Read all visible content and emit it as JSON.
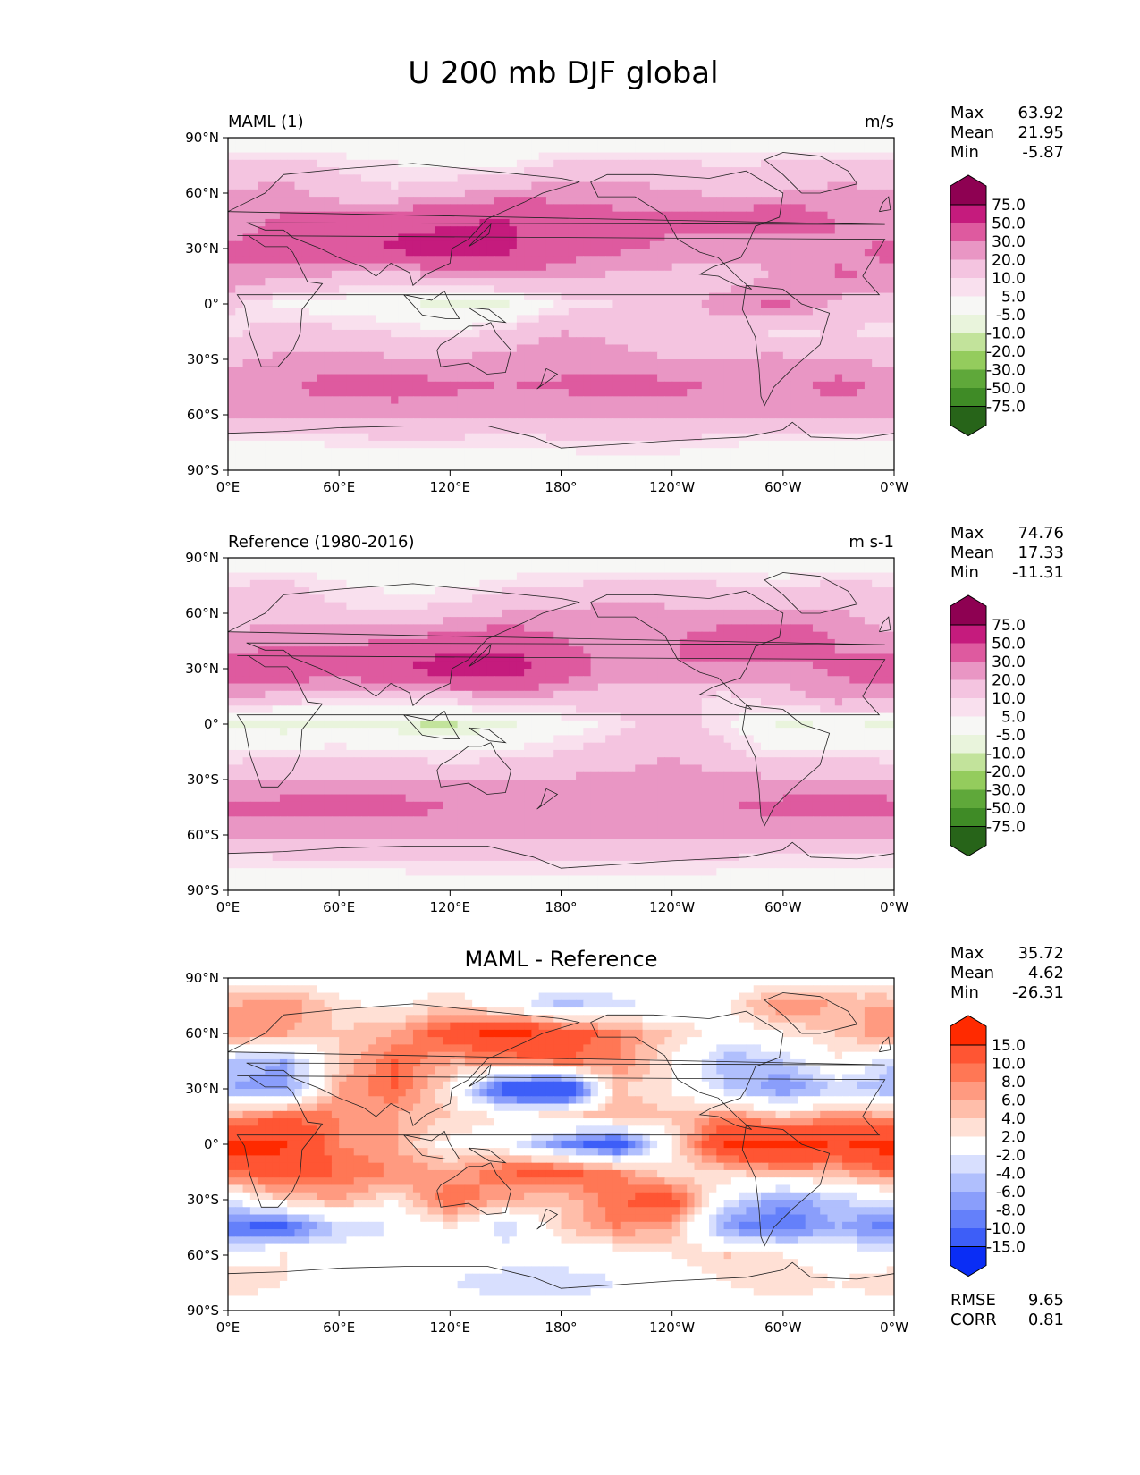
{
  "figure": {
    "title": "U 200 mb DJF global"
  },
  "chart_data": [
    {
      "type": "heatmap",
      "title": "",
      "left_label": "MAML (1)",
      "units": "m/s",
      "x_ticks": [
        "0°E",
        "60°E",
        "120°E",
        "180°",
        "120°W",
        "60°W",
        "0°W"
      ],
      "y_ticks": [
        "90°N",
        "60°N",
        "30°N",
        "0°",
        "30°S",
        "60°S",
        "90°S"
      ],
      "xlim": [
        0,
        360
      ],
      "ylim": [
        -90,
        90
      ],
      "stats": [
        {
          "label": "Max",
          "value": "63.92"
        },
        {
          "label": "Mean",
          "value": "21.95"
        },
        {
          "label": "Min",
          "value": "-5.87"
        }
      ],
      "colorbar": {
        "levels": [
          "75.0",
          "50.0",
          "30.0",
          "20.0",
          "10.0",
          "5.0",
          "-5.0",
          "-10.0",
          "-20.0",
          "-30.0",
          "-50.0",
          "-75.0"
        ],
        "colors": [
          "#8e0152",
          "#c51b7d",
          "#de5a9f",
          "#e996c4",
          "#f4c4e0",
          "#f9e0ee",
          "#f7f7f5",
          "#e9f4dc",
          "#c2e39b",
          "#94cc5d",
          "#5fa83a",
          "#3f8b26",
          "#276419"
        ],
        "extend": "both"
      },
      "field": {
        "grid_lon": [
          0,
          30,
          60,
          90,
          120,
          150,
          180,
          210,
          240,
          270,
          300,
          330,
          360
        ],
        "grid_lat": [
          90,
          75,
          60,
          45,
          30,
          15,
          0,
          -15,
          -30,
          -45,
          -60,
          -75,
          -90
        ],
        "values": [
          [
            -2,
            -2,
            -2,
            -2,
            -2,
            -2,
            -2,
            -2,
            -2,
            -2,
            -2,
            -2,
            -2
          ],
          [
            12,
            14,
            9,
            6,
            2,
            4,
            12,
            14,
            13,
            9,
            12,
            14,
            12
          ],
          [
            21,
            24,
            14,
            11,
            18,
            24,
            25,
            23,
            22,
            18,
            20,
            23,
            21
          ],
          [
            24,
            32,
            36,
            42,
            48,
            51,
            42,
            35,
            32,
            38,
            42,
            30,
            24
          ],
          [
            32,
            36,
            40,
            55,
            57,
            54,
            38,
            32,
            28,
            24,
            21,
            28,
            32
          ],
          [
            28,
            22,
            18,
            15,
            20,
            26,
            22,
            18,
            16,
            14,
            22,
            31,
            28
          ],
          [
            12,
            3,
            1,
            -2,
            -8,
            -6,
            6,
            10,
            14,
            26,
            32,
            16,
            12
          ],
          [
            8,
            14,
            12,
            9,
            6,
            12,
            20,
            18,
            16,
            12,
            8,
            10,
            8
          ],
          [
            18,
            22,
            24,
            21,
            20,
            24,
            26,
            22,
            20,
            21,
            22,
            19,
            18
          ],
          [
            26,
            28,
            36,
            38,
            33,
            30,
            32,
            36,
            34,
            28,
            26,
            36,
            26
          ],
          [
            20,
            22,
            22,
            21,
            20,
            20,
            20,
            20,
            20,
            20,
            20,
            21,
            20
          ],
          [
            2,
            4,
            6,
            8,
            8,
            6,
            8,
            10,
            9,
            6,
            4,
            2,
            2
          ],
          [
            -2,
            -2,
            -2,
            -2,
            -2,
            -2,
            -2,
            -2,
            -2,
            -2,
            -2,
            -2,
            -2
          ]
        ]
      }
    },
    {
      "type": "heatmap",
      "title": "",
      "left_label": "Reference (1980-2016)",
      "units": "m s-1",
      "x_ticks": [
        "0°E",
        "60°E",
        "120°E",
        "180°",
        "120°W",
        "60°W",
        "0°W"
      ],
      "y_ticks": [
        "90°N",
        "60°N",
        "30°N",
        "0°",
        "30°S",
        "60°S",
        "90°S"
      ],
      "xlim": [
        0,
        360
      ],
      "ylim": [
        -90,
        90
      ],
      "stats": [
        {
          "label": "Max",
          "value": "74.76"
        },
        {
          "label": "Mean",
          "value": "17.33"
        },
        {
          "label": "Min",
          "value": "-11.31"
        }
      ],
      "colorbar": {
        "levels": [
          "75.0",
          "50.0",
          "30.0",
          "20.0",
          "10.0",
          "5.0",
          "-5.0",
          "-10.0",
          "-20.0",
          "-30.0",
          "-50.0",
          "-75.0"
        ],
        "colors": [
          "#8e0152",
          "#c51b7d",
          "#de5a9f",
          "#e996c4",
          "#f4c4e0",
          "#f9e0ee",
          "#f7f7f5",
          "#e9f4dc",
          "#c2e39b",
          "#94cc5d",
          "#5fa83a",
          "#3f8b26",
          "#276419"
        ],
        "extend": "both"
      },
      "field": {
        "grid_lon": [
          0,
          30,
          60,
          90,
          120,
          150,
          180,
          210,
          240,
          270,
          300,
          330,
          360
        ],
        "grid_lat": [
          90,
          75,
          60,
          45,
          30,
          15,
          0,
          -15,
          -30,
          -45,
          -60,
          -75,
          -90
        ],
        "values": [
          [
            -2,
            -2,
            -2,
            -2,
            -2,
            -2,
            -2,
            -2,
            -2,
            -2,
            -2,
            -2,
            -2
          ],
          [
            10,
            12,
            6,
            3,
            3,
            8,
            10,
            12,
            14,
            10,
            8,
            12,
            10
          ],
          [
            14,
            16,
            12,
            10,
            14,
            20,
            22,
            24,
            22,
            20,
            24,
            22,
            14
          ],
          [
            22,
            28,
            28,
            30,
            38,
            42,
            30,
            24,
            28,
            42,
            44,
            28,
            22
          ],
          [
            36,
            42,
            38,
            48,
            62,
            64,
            40,
            24,
            30,
            28,
            26,
            32,
            36
          ],
          [
            24,
            16,
            12,
            10,
            14,
            22,
            18,
            14,
            12,
            8,
            16,
            26,
            24
          ],
          [
            -6,
            -10,
            -6,
            -9,
            -11,
            -6,
            0,
            8,
            14,
            6,
            -6,
            -4,
            -6
          ],
          [
            4,
            8,
            8,
            6,
            4,
            6,
            10,
            14,
            20,
            12,
            4,
            6,
            4
          ],
          [
            20,
            18,
            20,
            21,
            20,
            20,
            21,
            22,
            23,
            22,
            22,
            22,
            20
          ],
          [
            34,
            36,
            38,
            36,
            30,
            28,
            28,
            28,
            28,
            30,
            34,
            38,
            34
          ],
          [
            20,
            20,
            20,
            20,
            20,
            20,
            20,
            20,
            20,
            20,
            20,
            20,
            20
          ],
          [
            6,
            8,
            8,
            8,
            10,
            10,
            10,
            10,
            10,
            8,
            6,
            6,
            6
          ],
          [
            -2,
            -2,
            -2,
            -2,
            -2,
            -2,
            -2,
            -2,
            -2,
            -2,
            -2,
            -2,
            -2
          ]
        ]
      }
    },
    {
      "type": "heatmap",
      "title": "MAML - Reference",
      "left_label": "",
      "units": "",
      "x_ticks": [
        "0°E",
        "60°E",
        "120°E",
        "180°",
        "120°W",
        "60°W",
        "0°W"
      ],
      "y_ticks": [
        "90°N",
        "60°N",
        "30°N",
        "0°",
        "30°S",
        "60°S",
        "90°S"
      ],
      "xlim": [
        0,
        360
      ],
      "ylim": [
        -90,
        90
      ],
      "stats": [
        {
          "label": "Max",
          "value": "35.72"
        },
        {
          "label": "Mean",
          "value": "4.62"
        },
        {
          "label": "Min",
          "value": "-26.31"
        }
      ],
      "extra_stats": [
        {
          "label": "RMSE",
          "value": "9.65"
        },
        {
          "label": "CORR",
          "value": "0.81"
        }
      ],
      "colorbar": {
        "levels": [
          "15.0",
          "10.0",
          "8.0",
          "6.0",
          "4.0",
          "2.0",
          "-2.0",
          "-4.0",
          "-6.0",
          "-8.0",
          "-10.0",
          "-15.0"
        ],
        "colors": [
          "#ff2a00",
          "#ff5533",
          "#ff7755",
          "#ff9a80",
          "#ffbeaa",
          "#ffe0d5",
          "#ffffff",
          "#d8dffe",
          "#b0bffd",
          "#8a9efb",
          "#6480fa",
          "#3d5ef8",
          "#0a2df5"
        ],
        "extend": "both"
      },
      "field": {
        "grid_lon": [
          0,
          30,
          60,
          90,
          120,
          150,
          180,
          210,
          240,
          270,
          300,
          330,
          360
        ],
        "grid_lat": [
          90,
          75,
          60,
          45,
          30,
          15,
          0,
          -15,
          -30,
          -45,
          -60,
          -75,
          -90
        ],
        "values": [
          [
            0,
            0,
            0,
            0,
            0,
            0,
            0,
            0,
            0,
            0,
            0,
            0,
            0
          ],
          [
            6,
            8,
            3,
            1,
            4,
            0,
            -5,
            -3,
            0,
            2,
            8,
            6,
            6
          ],
          [
            8,
            6,
            4,
            6,
            12,
            17,
            13,
            8,
            4,
            0,
            2,
            4,
            8
          ],
          [
            -4,
            -6,
            4,
            10,
            6,
            8,
            10,
            8,
            2,
            -6,
            -4,
            2,
            -4
          ],
          [
            -6,
            -8,
            6,
            10,
            2,
            -14,
            -18,
            4,
            2,
            -4,
            -8,
            -4,
            -6
          ],
          [
            6,
            10,
            8,
            6,
            4,
            2,
            4,
            6,
            4,
            8,
            4,
            8,
            6
          ],
          [
            18,
            16,
            8,
            6,
            1,
            0,
            -8,
            -14,
            2,
            16,
            18,
            14,
            18
          ],
          [
            10,
            12,
            10,
            8,
            6,
            10,
            12,
            8,
            2,
            4,
            6,
            6,
            10
          ],
          [
            -2,
            4,
            6,
            2,
            10,
            6,
            4,
            10,
            12,
            -2,
            -8,
            -4,
            -2
          ],
          [
            -10,
            -12,
            -4,
            -2,
            2,
            -4,
            4,
            8,
            6,
            -8,
            -10,
            -6,
            -10
          ],
          [
            0,
            2,
            0,
            0,
            0,
            0,
            0,
            0,
            2,
            4,
            2,
            0,
            0
          ],
          [
            4,
            2,
            0,
            0,
            -2,
            -4,
            -4,
            -2,
            0,
            2,
            4,
            2,
            4
          ],
          [
            0,
            0,
            0,
            0,
            0,
            0,
            0,
            0,
            0,
            0,
            0,
            0,
            0
          ]
        ]
      }
    }
  ]
}
